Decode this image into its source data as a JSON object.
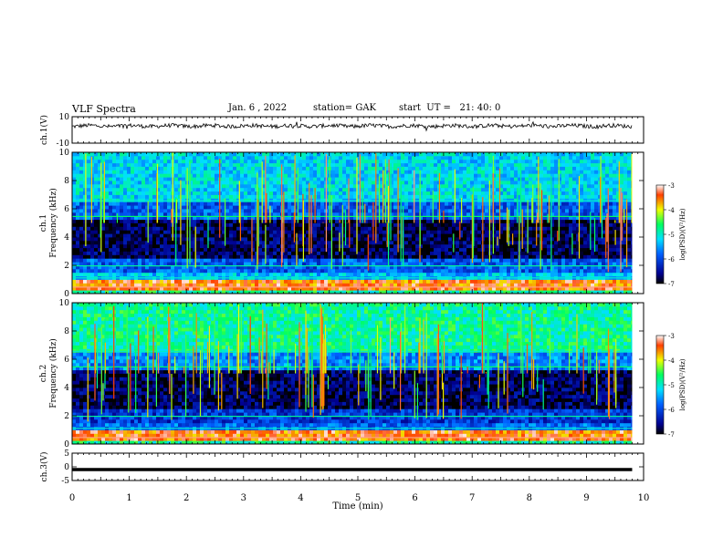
{
  "header": {
    "title": "VLF Spectra",
    "date": "Jan. 6 , 2022",
    "station": "station= GAK",
    "start": "start  UT =   21: 40: 0"
  },
  "chart_data": [
    {
      "type": "line",
      "panel": "ch1-waveform",
      "ylabel": "ch.1(V)",
      "ylim": [
        -10,
        10
      ],
      "yticks": [
        "10",
        "-10"
      ],
      "xlim": [
        0,
        10
      ],
      "data_extent": [
        0,
        9.8
      ],
      "baseline": 3.0,
      "amplitude": 1.5
    },
    {
      "type": "heatmap",
      "panel": "ch1-spectrogram",
      "ylabel": "Frequency (kHz)",
      "channel": "ch.1",
      "ylim": [
        0,
        10
      ],
      "yticks": [
        "0",
        "2",
        "4",
        "6",
        "8",
        "10"
      ],
      "xlim": [
        0,
        10
      ],
      "data_extent": [
        0,
        9.8
      ],
      "colorbar": {
        "label": "log(PSD)(V²/Hz)",
        "range": [
          -7,
          -3
        ],
        "ticks": [
          "-3",
          "-4",
          "-5",
          "-6",
          "-7"
        ]
      }
    },
    {
      "type": "heatmap",
      "panel": "ch2-spectrogram",
      "ylabel": "Frequency (kHz)",
      "channel": "ch.2",
      "ylim": [
        0,
        10
      ],
      "yticks": [
        "0",
        "2",
        "4",
        "6",
        "8",
        "10"
      ],
      "xlim": [
        0,
        10
      ],
      "data_extent": [
        0,
        9.8
      ],
      "colorbar": {
        "label": "log(PSD)(V²/Hz)",
        "range": [
          -7,
          -3
        ],
        "ticks": [
          "-3",
          "-4",
          "-5",
          "-6",
          "-7"
        ]
      }
    },
    {
      "type": "line",
      "panel": "ch3-waveform",
      "ylabel": "ch.3(V)",
      "ylim": [
        -5,
        5
      ],
      "yticks": [
        "5",
        "0",
        "-5"
      ],
      "xlim": [
        0,
        10
      ],
      "data_extent": [
        0,
        9.8
      ],
      "baseline": -1.0
    }
  ],
  "xaxis": {
    "label": "Time  (min)",
    "ticks": [
      "0",
      "1",
      "2",
      "3",
      "4",
      "5",
      "6",
      "7",
      "8",
      "9",
      "10"
    ]
  }
}
